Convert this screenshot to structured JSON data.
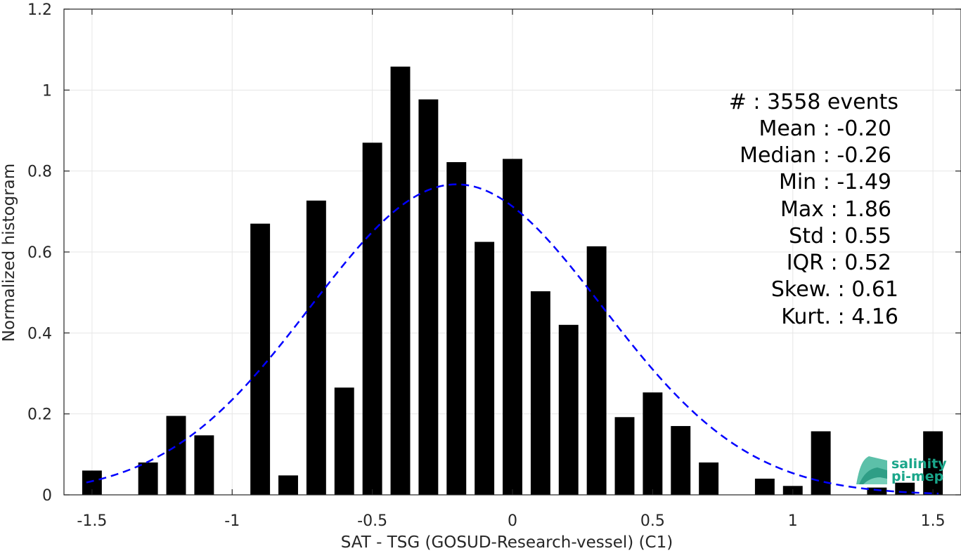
{
  "chart_data": {
    "type": "bar",
    "xlabel": "SAT - TSG (GOSUD-Research-vessel) (C1)",
    "ylabel": "Normalized histogram",
    "xlim": [
      -1.6,
      1.6
    ],
    "ylim": [
      0,
      1.2
    ],
    "xticks": [
      -1.5,
      -1,
      -0.5,
      0,
      0.5,
      1,
      1.5
    ],
    "xtick_labels": [
      "-1.5",
      "-1",
      "-0.5",
      "0",
      "0.5",
      "1",
      "1.5"
    ],
    "yticks": [
      0,
      0.2,
      0.4,
      0.6,
      0.8,
      1,
      1.2
    ],
    "ytick_labels": [
      "0",
      "0.2",
      "0.4",
      "0.6",
      "0.8",
      "1",
      "1.2"
    ],
    "grid": true,
    "bar_width": 0.07,
    "bar_color": "#000000",
    "bars": [
      {
        "x": -1.5,
        "y": 0.06
      },
      {
        "x": -1.3,
        "y": 0.08
      },
      {
        "x": -1.2,
        "y": 0.195
      },
      {
        "x": -1.1,
        "y": 0.147
      },
      {
        "x": -0.9,
        "y": 0.67
      },
      {
        "x": -0.8,
        "y": 0.048
      },
      {
        "x": -0.7,
        "y": 0.727
      },
      {
        "x": -0.6,
        "y": 0.265
      },
      {
        "x": -0.5,
        "y": 0.87
      },
      {
        "x": -0.4,
        "y": 1.058
      },
      {
        "x": -0.3,
        "y": 0.977
      },
      {
        "x": -0.2,
        "y": 0.822
      },
      {
        "x": -0.1,
        "y": 0.625
      },
      {
        "x": 0.0,
        "y": 0.83
      },
      {
        "x": 0.1,
        "y": 0.503
      },
      {
        "x": 0.2,
        "y": 0.42
      },
      {
        "x": 0.3,
        "y": 0.614
      },
      {
        "x": 0.4,
        "y": 0.192
      },
      {
        "x": 0.5,
        "y": 0.253
      },
      {
        "x": 0.6,
        "y": 0.17
      },
      {
        "x": 0.7,
        "y": 0.08
      },
      {
        "x": 0.9,
        "y": 0.04
      },
      {
        "x": 1.0,
        "y": 0.022
      },
      {
        "x": 1.1,
        "y": 0.157
      },
      {
        "x": 1.3,
        "y": 0.018
      },
      {
        "x": 1.4,
        "y": 0.03
      },
      {
        "x": 1.5,
        "y": 0.157
      }
    ],
    "fit_curve": {
      "type": "gaussian",
      "mean": -0.2,
      "std": 0.52,
      "x_range": [
        -1.52,
        1.52
      ],
      "color": "#0000ff",
      "style": "dashed"
    }
  },
  "stats": {
    "events": "#  : 3558 events",
    "mean": "Mean : -0.20",
    "median": "Median : -0.26",
    "min": "Min : -1.49",
    "max": "Max : 1.86",
    "std": "Std : 0.55",
    "iqr": "IQR : 0.52",
    "skew": "Skew. : 0.61",
    "kurt": "Kurt. : 4.16"
  },
  "logo": {
    "line1": "salinity",
    "line2": "pi-mep",
    "color": "#1aa68a"
  }
}
